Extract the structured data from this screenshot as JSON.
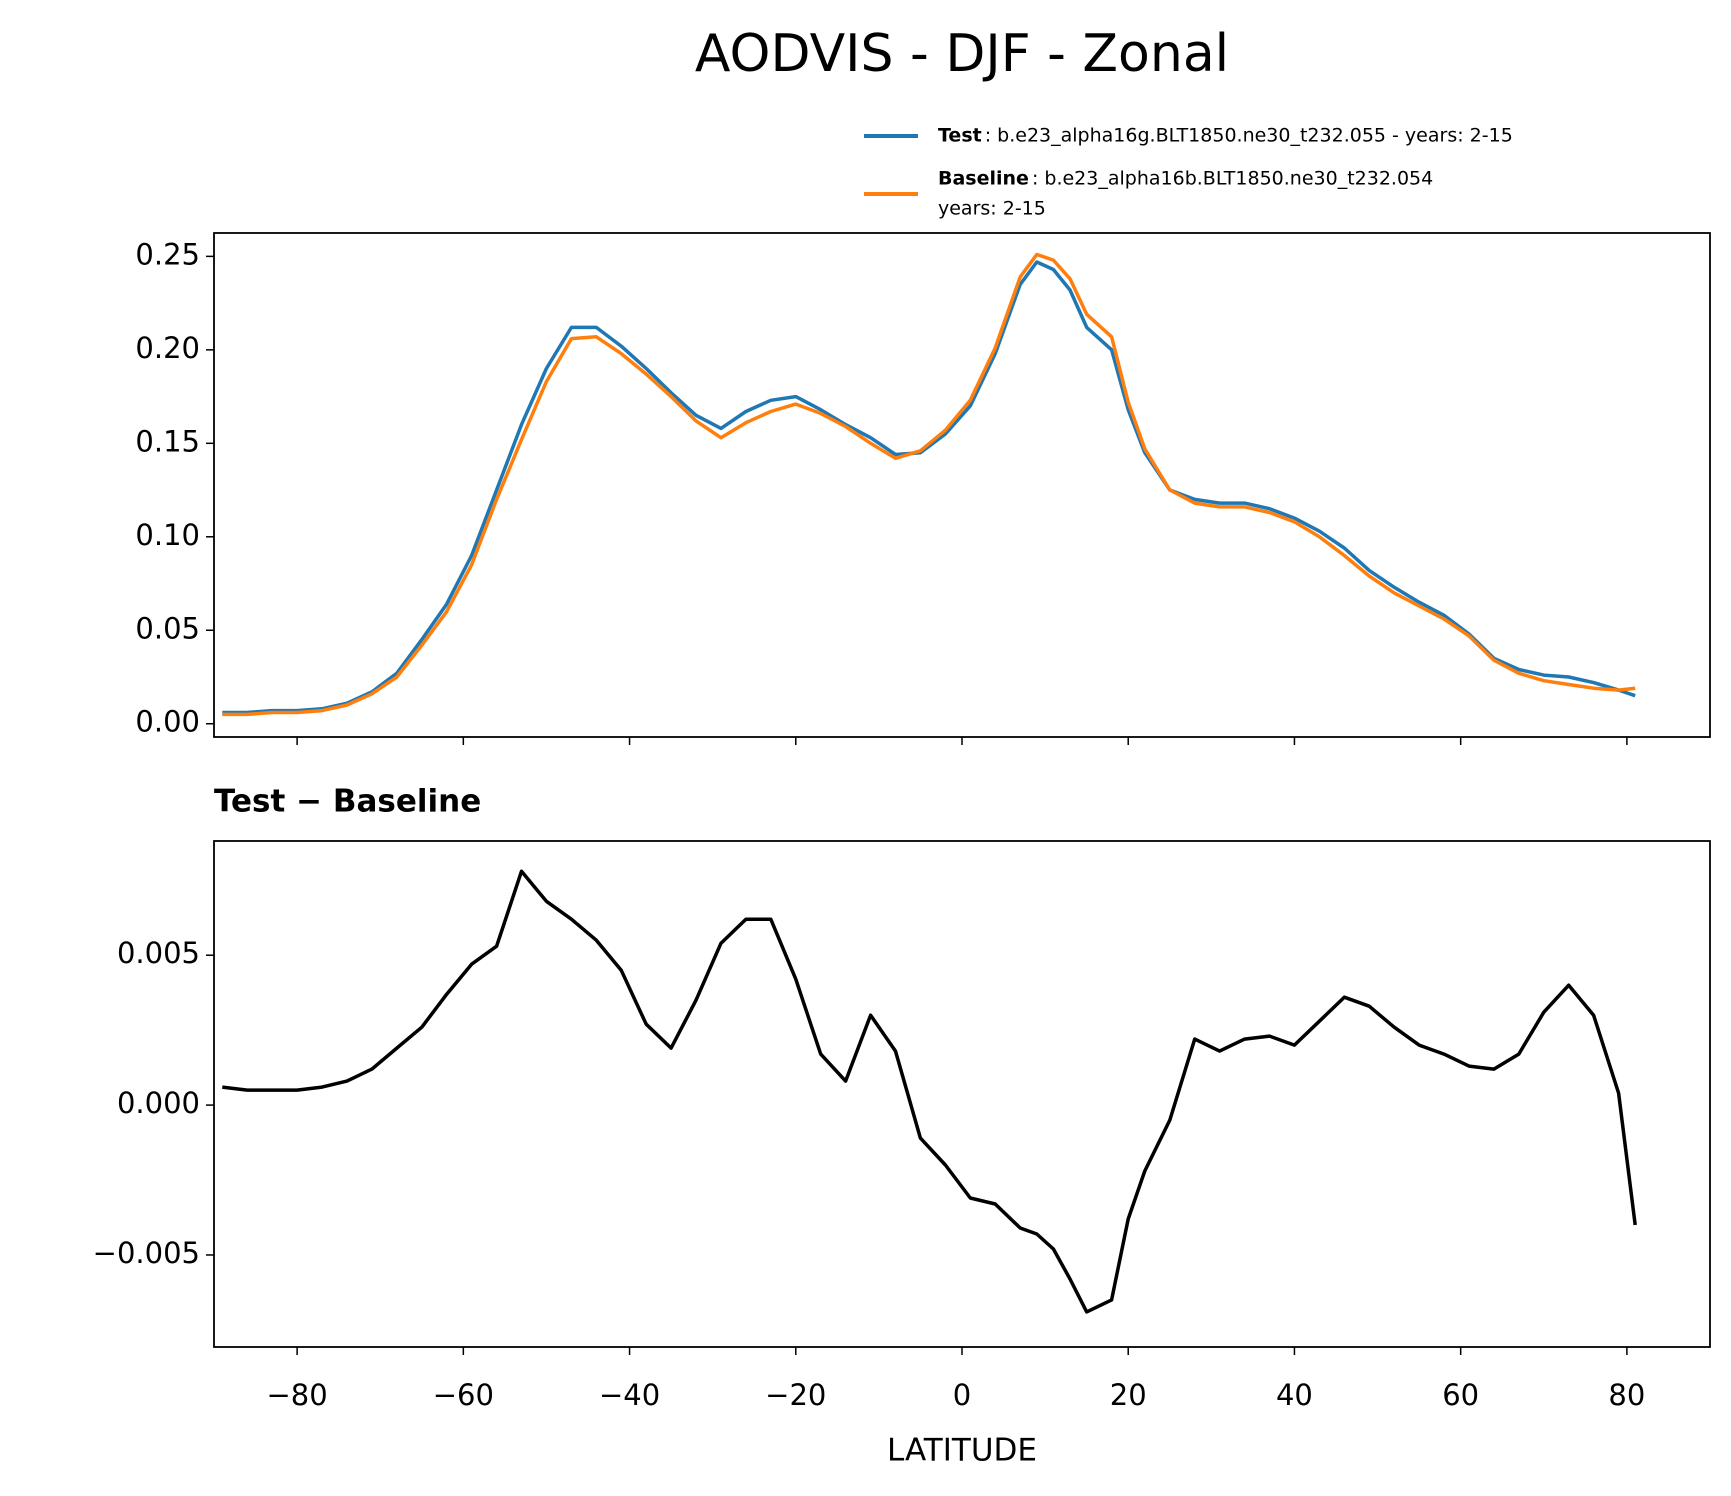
{
  "title": "AODVIS - DJF - Zonal",
  "chart_data": [
    {
      "type": "line",
      "x": [
        -89,
        -86,
        -83,
        -80,
        -77,
        -74,
        -71,
        -68,
        -65,
        -62,
        -59,
        -56,
        -53,
        -50,
        -47,
        -44,
        -41,
        -38,
        -35,
        -32,
        -29,
        -26,
        -23,
        -20,
        -17,
        -14,
        -11,
        -8,
        -5,
        -2,
        1,
        4,
        7,
        9,
        11,
        13,
        15,
        18,
        20,
        22,
        25,
        28,
        31,
        34,
        37,
        40,
        43,
        46,
        49,
        52,
        55,
        58,
        61,
        64,
        67,
        70,
        73,
        76,
        79,
        81
      ],
      "series": [
        {
          "name": "Test",
          "description": [
            ": b.e23_alpha16g.BLT1850.ne30_t232.055 - years: 2-15"
          ],
          "color": "#1f77b4",
          "values": [
            0.006,
            0.006,
            0.007,
            0.007,
            0.008,
            0.011,
            0.017,
            0.027,
            0.045,
            0.064,
            0.09,
            0.125,
            0.16,
            0.19,
            0.212,
            0.212,
            0.202,
            0.19,
            0.177,
            0.165,
            0.158,
            0.167,
            0.173,
            0.175,
            0.168,
            0.16,
            0.153,
            0.144,
            0.145,
            0.155,
            0.17,
            0.198,
            0.235,
            0.247,
            0.243,
            0.232,
            0.212,
            0.2,
            0.168,
            0.145,
            0.125,
            0.12,
            0.118,
            0.118,
            0.115,
            0.11,
            0.103,
            0.094,
            0.082,
            0.073,
            0.065,
            0.058,
            0.048,
            0.035,
            0.029,
            0.026,
            0.025,
            0.022,
            0.018,
            0.015
          ]
        },
        {
          "name": "Baseline",
          "description": [
            ": b.e23_alpha16b.BLT1850.ne30_t232.054",
            "years: 2-15"
          ],
          "color": "#ff7f0e",
          "values": [
            0.005,
            0.005,
            0.006,
            0.006,
            0.007,
            0.01,
            0.016,
            0.025,
            0.042,
            0.06,
            0.085,
            0.12,
            0.152,
            0.183,
            0.206,
            0.207,
            0.198,
            0.187,
            0.175,
            0.162,
            0.153,
            0.161,
            0.167,
            0.171,
            0.166,
            0.159,
            0.15,
            0.142,
            0.146,
            0.157,
            0.173,
            0.201,
            0.239,
            0.251,
            0.248,
            0.238,
            0.219,
            0.207,
            0.172,
            0.147,
            0.125,
            0.118,
            0.116,
            0.116,
            0.113,
            0.108,
            0.1,
            0.09,
            0.079,
            0.07,
            0.063,
            0.056,
            0.047,
            0.034,
            0.027,
            0.023,
            0.021,
            0.019,
            0.018,
            0.019
          ]
        }
      ],
      "xlim": [
        -90,
        90
      ],
      "xticks": [
        {
          "value": -80,
          "label": "−80"
        },
        {
          "value": -60,
          "label": "−60"
        },
        {
          "value": -40,
          "label": "−40"
        },
        {
          "value": -20,
          "label": "−20"
        },
        0,
        20,
        40,
        60,
        80
      ],
      "ylim": [
        -0.0071,
        0.2625
      ],
      "yticks": [
        {
          "value": 0,
          "label": "0.00"
        },
        0.05,
        {
          "value": 0.1,
          "label": "0.10"
        },
        0.15,
        {
          "value": 0.2,
          "label": "0.20"
        },
        0.25
      ],
      "legend": "upper right"
    },
    {
      "type": "line",
      "title": "Test − Baseline",
      "xlabel": "LATITUDE",
      "x": [
        -89,
        -86,
        -83,
        -80,
        -77,
        -74,
        -71,
        -68,
        -65,
        -62,
        -59,
        -56,
        -53,
        -50,
        -47,
        -44,
        -41,
        -38,
        -35,
        -32,
        -29,
        -26,
        -23,
        -20,
        -17,
        -14,
        -11,
        -8,
        -5,
        -2,
        1,
        4,
        7,
        9,
        11,
        13,
        15,
        18,
        20,
        22,
        25,
        28,
        31,
        34,
        37,
        40,
        43,
        46,
        49,
        52,
        55,
        58,
        61,
        64,
        67,
        70,
        73,
        76,
        79,
        81
      ],
      "series": [
        {
          "color": "#000000",
          "values": [
            0.0006,
            0.0005,
            0.0005,
            0.0005,
            0.0006,
            0.0008,
            0.0012,
            0.0019,
            0.0026,
            0.0037,
            0.0047,
            0.0053,
            0.0078,
            0.0068,
            0.0062,
            0.0055,
            0.0045,
            0.0027,
            0.0019,
            0.0035,
            0.0054,
            0.0062,
            0.0062,
            0.0042,
            0.0017,
            0.0008,
            0.003,
            0.0018,
            -0.0011,
            -0.002,
            -0.0031,
            -0.0033,
            -0.0041,
            -0.0043,
            -0.0048,
            -0.0058,
            -0.0069,
            -0.0065,
            -0.0038,
            -0.0022,
            -0.0005,
            0.0022,
            0.0018,
            0.0022,
            0.0023,
            0.002,
            0.0028,
            0.0036,
            0.0033,
            0.0026,
            0.002,
            0.0017,
            0.0013,
            0.0012,
            0.0017,
            0.0031,
            0.004,
            0.003,
            0.0004,
            -0.004
          ]
        }
      ],
      "xlim": [
        -90,
        90
      ],
      "xticks": [
        {
          "value": -80,
          "label": "−80"
        },
        {
          "value": -60,
          "label": "−60"
        },
        {
          "value": -40,
          "label": "−40"
        },
        {
          "value": -20,
          "label": "−20"
        },
        0,
        20,
        40,
        60,
        80
      ],
      "ylim": [
        -0.00807,
        0.00881
      ],
      "yticks": [
        {
          "value": -0.005,
          "label": "−0.005"
        },
        {
          "value": 0,
          "label": "0.000"
        },
        0.005
      ]
    }
  ]
}
